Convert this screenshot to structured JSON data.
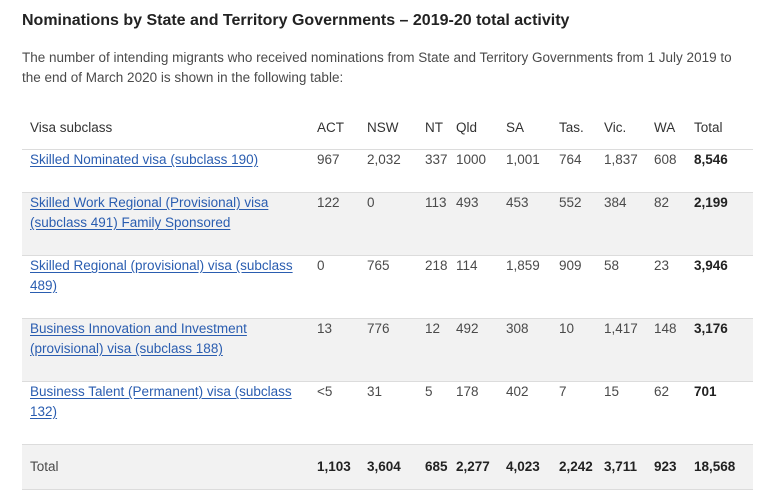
{
  "title": "Nominations by State and Territory Governments – 2019-20 total activity",
  "intro": "The number of intending migrants who received nominations from State and Territory Governments from 1 July 2019 to the end of March 2020 is shown in the following table:",
  "table": {
    "headers": [
      "Visa subclass",
      "ACT",
      "NSW",
      "NT",
      "Qld",
      "SA",
      "Tas.",
      "Vic.",
      "WA",
      "Total"
    ],
    "rows": [
      {
        "label": "Skilled Nominated visa (subclass 190)",
        "values": [
          "967",
          "2,032",
          "337",
          "1000",
          "1,001",
          "764",
          "1,837",
          "608"
        ],
        "total": "8,546"
      },
      {
        "label": "Skilled Work Regional (Provisional) visa (subclass 491) Family Sponsored",
        "values": [
          "122",
          "0",
          "113",
          "493",
          "453",
          "552",
          "384",
          "82"
        ],
        "total": "2,199"
      },
      {
        "label": "Skilled Regional (provisional) visa (subclass 489)",
        "values": [
          "0",
          "765",
          "218",
          "114",
          "1,859",
          "909",
          "58",
          "23"
        ],
        "total": "3,946"
      },
      {
        "label": "Business Innovation and Investment (provisional) visa (subclass 188)",
        "values": [
          "13",
          "776",
          "12",
          "492",
          "308",
          "10",
          "1,417",
          "148"
        ],
        "total": "3,176"
      },
      {
        "label": "Business Talent (Permanent) visa (subclass 132)",
        "values": [
          "<5",
          "31",
          "5",
          "178",
          "402",
          "7",
          "15",
          "62"
        ],
        "total": "701"
      }
    ],
    "total_row": {
      "label": "Total",
      "values": [
        "1,103",
        "3,604",
        "685",
        "2,277",
        "4,023",
        "2,242",
        "3,711",
        "923"
      ],
      "total": "18,568"
    }
  },
  "colors": {
    "link": "#2a5db0",
    "shade": "#f2f2f2",
    "divider": "#dcdcdc"
  }
}
